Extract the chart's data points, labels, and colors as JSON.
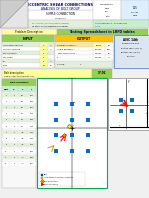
{
  "bg_color": "#f0f0f0",
  "white": "#ffffff",
  "yellow": "#ffff99",
  "green_header": "#92d050",
  "green_light": "#e2efda",
  "green_cell": "#c6efce",
  "orange": "#ffc000",
  "blue_light": "#ddeeff",
  "blue_header": "#4472c4",
  "blue_bolt": "#0070c0",
  "red": "#ff0000",
  "orange_arrow": "#ff8800",
  "purple": "#7030a0",
  "dark_blue": "#000080",
  "border": "#aaaaaa",
  "fold_gray": "#cccccc",
  "grid_green": "#00b050",
  "pink_light": "#ffe0e0",
  "tan": "#f5e6d0",
  "aisc_bg": "#dce6f1"
}
